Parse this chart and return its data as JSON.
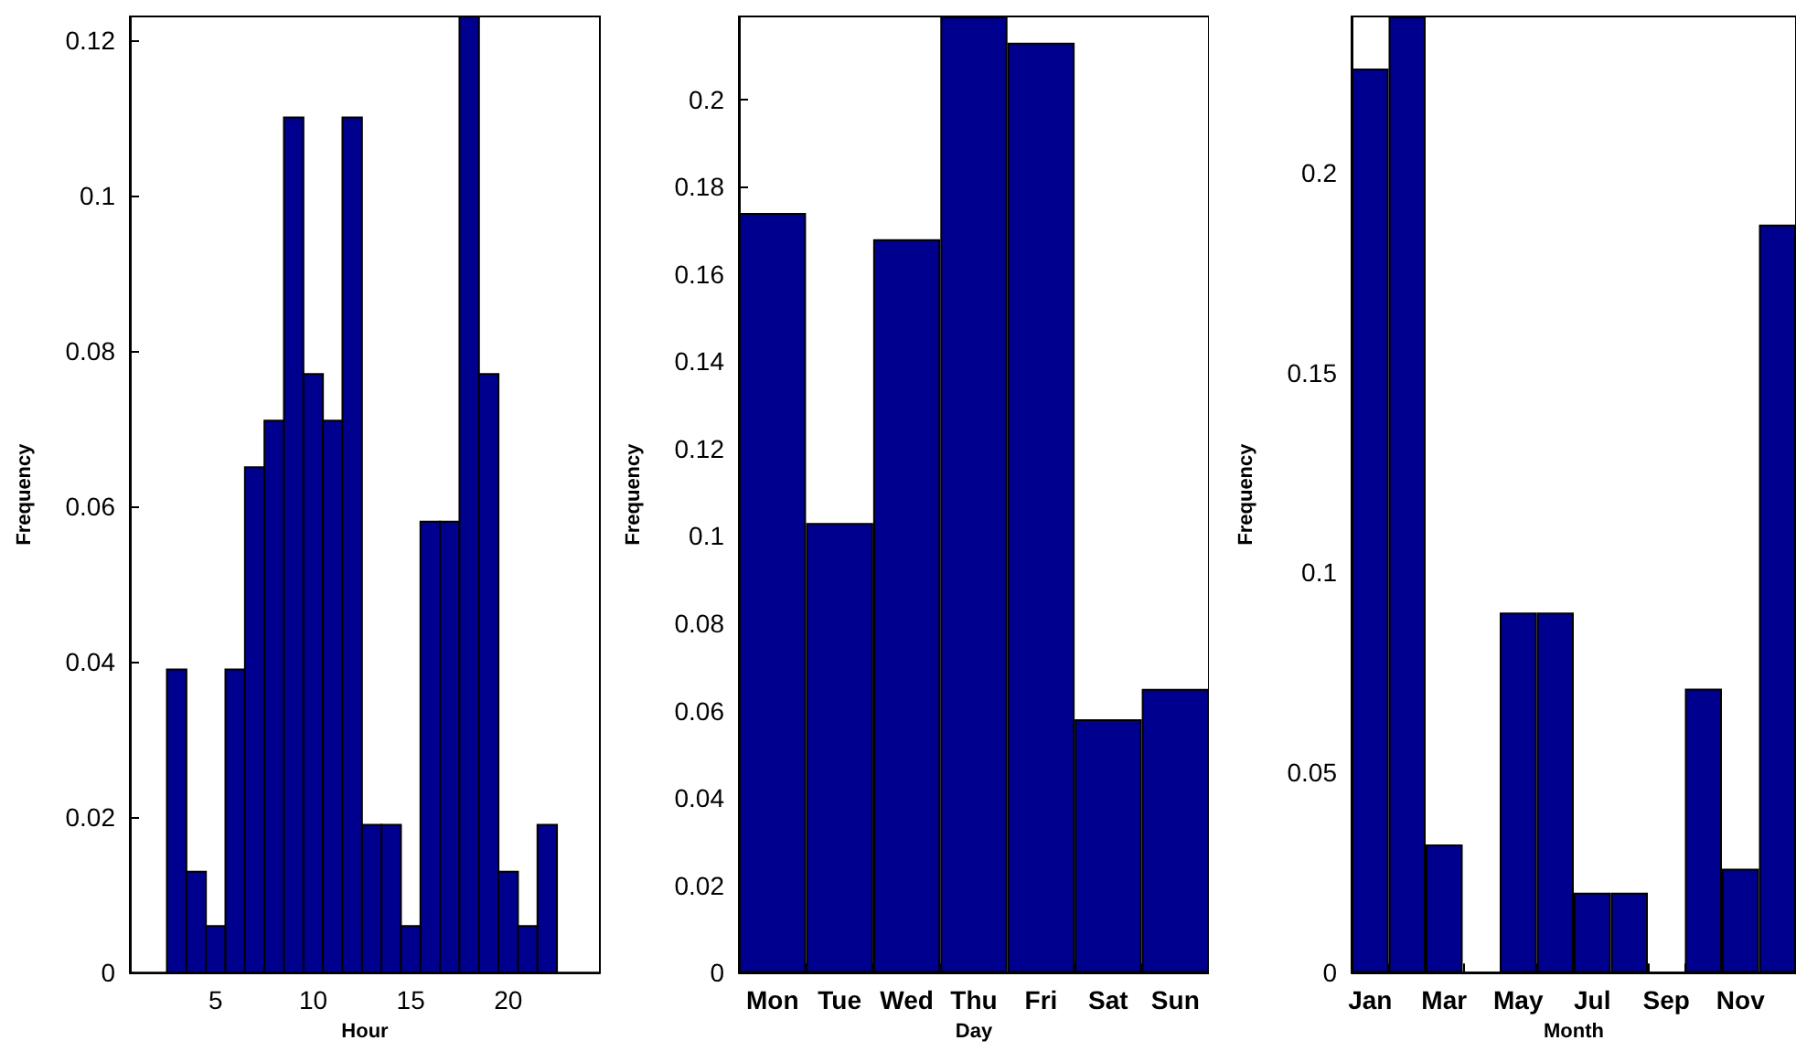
{
  "chart_data": [
    {
      "type": "histogram",
      "xlabel": "Hour",
      "ylabel": "Frequency",
      "color": "#00008f",
      "bins": [
        2.5,
        3.5,
        4.5,
        5.5,
        6.5,
        7.5,
        8.5,
        9.5,
        10.5,
        11.5,
        12.5,
        13.5,
        14.5,
        15.5,
        16.5,
        17.5,
        18.5,
        19.5,
        20.5,
        21.5,
        22.5
      ],
      "values": [
        0.039,
        0.013,
        0.006,
        0.039,
        0.065,
        0.071,
        0.11,
        0.077,
        0.071,
        0.11,
        0.019,
        0.019,
        0.006,
        0.058,
        0.058,
        0.123,
        0.077,
        0.013,
        0.006,
        0.019
      ],
      "xlim": [
        0.6,
        24.7
      ],
      "xticks": [
        5,
        10,
        15,
        20
      ],
      "ylim": [
        0,
        0.123
      ],
      "yticks": [
        0,
        0.02,
        0.04,
        0.06,
        0.08,
        0.1,
        0.12
      ]
    },
    {
      "type": "bar",
      "xlabel": "Day",
      "ylabel": "Frequency",
      "color": "#00008f",
      "categories": [
        "Mon",
        "Tue",
        "Wed",
        "Thu",
        "Fri",
        "Sat",
        "Sun"
      ],
      "values": [
        0.174,
        0.103,
        0.168,
        0.219,
        0.213,
        0.058,
        0.065
      ],
      "ylim": [
        0,
        0.219
      ],
      "yticks": [
        0,
        0.02,
        0.04,
        0.06,
        0.08,
        0.1,
        0.12,
        0.14,
        0.16,
        0.18,
        0.2
      ]
    },
    {
      "type": "bar",
      "xlabel": "Month",
      "ylabel": "Frequency",
      "color": "#00008f",
      "categories": [
        "Jan",
        null,
        "Mar",
        null,
        "May",
        null,
        "Jul",
        null,
        "Sep",
        null,
        "Nov",
        null
      ],
      "values": [
        0.226,
        0.239,
        0.032,
        0,
        0.09,
        0.09,
        0.02,
        0.02,
        0,
        0.071,
        0.026,
        0.187
      ],
      "ylim": [
        0,
        0.239
      ],
      "yticks": [
        0,
        0.05,
        0.1,
        0.15,
        0.2
      ]
    }
  ]
}
